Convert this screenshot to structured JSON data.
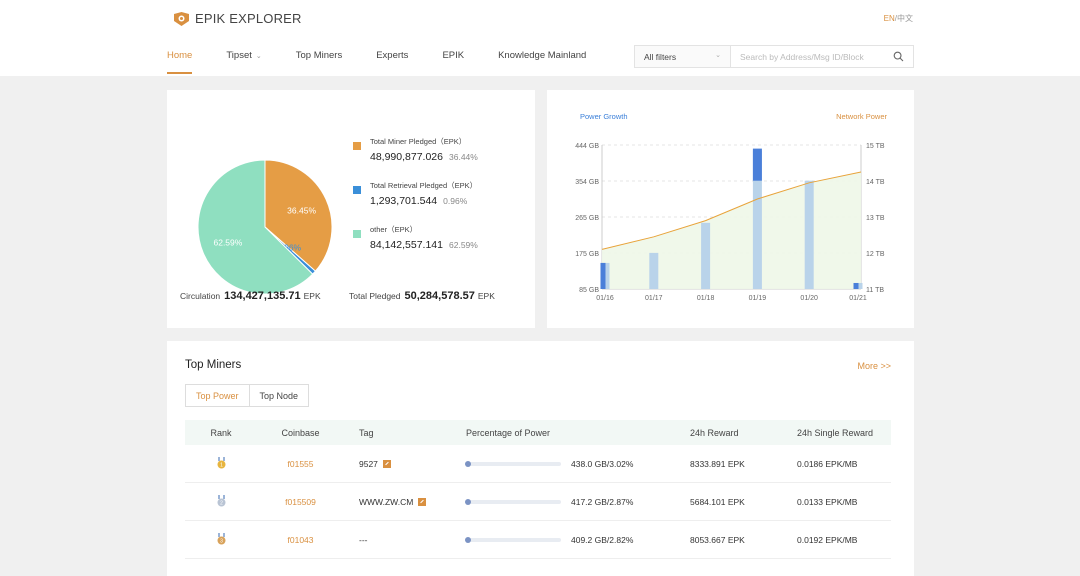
{
  "brand": {
    "name": "EPIK EXPLORER",
    "color": "#d99040"
  },
  "lang": {
    "en": "EN",
    "sep": "/",
    "zh": "中文"
  },
  "nav": {
    "items": [
      {
        "label": "Home",
        "active": true
      },
      {
        "label": "Tipset",
        "dropdown": true
      },
      {
        "label": "Top Miners"
      },
      {
        "label": "Experts"
      },
      {
        "label": "EPIK"
      },
      {
        "label": "Knowledge Mainland"
      }
    ],
    "filter_label": "All filters",
    "search_placeholder": "Search by Address/Msg ID/Block"
  },
  "pie": {
    "slices": [
      {
        "name": "Total Miner Pledged（EPK）",
        "value": "48,990,877.026",
        "pct": "36.45%",
        "pct_legend": "36.44%",
        "share": 36.44,
        "color": "#e59d45"
      },
      {
        "name": "Total Retrieval Pledged（EPK）",
        "value": "1,293,701.544",
        "pct": "0.96%",
        "pct_legend": "0.96%",
        "share": 0.96,
        "color": "#3a8fd9"
      },
      {
        "name": "other（EPK）",
        "value": "84,142,557.141",
        "pct": "62.59%",
        "pct_legend": "62.59%",
        "share": 62.59,
        "color": "#8fdfc0"
      }
    ],
    "circulation_label": "Circulation",
    "circulation_value": "134,427,135.71",
    "total_pledged_label": "Total Pledged",
    "total_pledged_value": "50,284,578.57",
    "unit": "EPK"
  },
  "chart_data": {
    "type": "bar",
    "left_legend": "Power Growth",
    "right_legend": "Network Power",
    "categories": [
      "01/16",
      "01/17",
      "01/18",
      "01/19",
      "01/20",
      "01/21"
    ],
    "y_left_ticks": [
      "85 GB",
      "175 GB",
      "265 GB",
      "354 GB",
      "444 GB"
    ],
    "y_right_ticks": [
      "11 TB",
      "12 TB",
      "13 TB",
      "14 TB",
      "15 TB"
    ],
    "ylim_left": [
      85,
      444
    ],
    "ylim_right": [
      11,
      15
    ],
    "series": [
      {
        "name": "Power Growth",
        "values": [
          150,
          175,
          250,
          430,
          355,
          100
        ],
        "color": "#b9d3ea"
      },
      {
        "name": "Network Power",
        "values": [
          12.1,
          12.45,
          12.9,
          13.5,
          13.95,
          14.25
        ],
        "color": "#e8a33a"
      }
    ],
    "highlight_bars": [
      {
        "category": "01/16",
        "value": 150,
        "color": "#4a7fd9"
      },
      {
        "category": "01/19",
        "value": 85,
        "top": 435,
        "bottom": 355,
        "color": "#4a7fd9"
      },
      {
        "category": "01/21",
        "value": 100,
        "color": "#4a7fd9"
      }
    ]
  },
  "top_miners": {
    "title": "Top Miners",
    "more": "More >>",
    "tabs": [
      "Top Power",
      "Top Node"
    ],
    "columns": [
      "Rank",
      "Coinbase",
      "Tag",
      "Percentage of Power",
      "24h Reward",
      "24h Single Reward"
    ],
    "rows": [
      {
        "medal": "gold",
        "coinbase": "f01555",
        "tag": "9527",
        "editable": true,
        "power": "438.0 GB/3.02%",
        "share": 3.02,
        "reward": "8333.891 EPK",
        "single": "0.0186 EPK/MB"
      },
      {
        "medal": "silver",
        "coinbase": "f015509",
        "tag": "WWW.ZW.CM",
        "editable": true,
        "power": "417.2 GB/2.87%",
        "share": 2.87,
        "reward": "5684.101 EPK",
        "single": "0.0133 EPK/MB"
      },
      {
        "medal": "bronze",
        "coinbase": "f01043",
        "tag": "---",
        "editable": false,
        "power": "409.2 GB/2.82%",
        "share": 2.82,
        "reward": "8053.667 EPK",
        "single": "0.0192 EPK/MB"
      }
    ]
  }
}
